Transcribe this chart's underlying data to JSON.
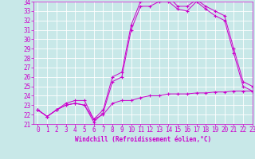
{
  "title": "",
  "xlabel": "Windchill (Refroidissement éolien,°C)",
  "background_color": "#c8e8e8",
  "line_color": "#cc00cc",
  "x_values": [
    0,
    1,
    2,
    3,
    4,
    5,
    6,
    7,
    8,
    9,
    10,
    11,
    12,
    13,
    14,
    15,
    16,
    17,
    18,
    19,
    20,
    21,
    22,
    23
  ],
  "line1": [
    22.5,
    21.8,
    22.5,
    23.0,
    23.2,
    23.0,
    21.2,
    22.2,
    25.5,
    26.0,
    31.0,
    33.5,
    33.5,
    34.0,
    34.0,
    33.2,
    33.0,
    34.0,
    33.2,
    32.5,
    32.0,
    28.5,
    25.0,
    24.5
  ],
  "line2": [
    22.5,
    21.8,
    22.5,
    23.2,
    23.5,
    23.5,
    21.5,
    22.5,
    26.0,
    26.5,
    31.5,
    34.0,
    34.5,
    34.5,
    34.5,
    33.5,
    33.5,
    34.2,
    33.5,
    33.0,
    32.5,
    29.0,
    25.5,
    25.0
  ],
  "line3": [
    22.5,
    21.8,
    22.5,
    23.0,
    23.2,
    23.0,
    21.5,
    22.0,
    23.2,
    23.5,
    23.5,
    23.8,
    24.0,
    24.0,
    24.2,
    24.2,
    24.2,
    24.3,
    24.3,
    24.4,
    24.4,
    24.5,
    24.5,
    24.5
  ],
  "ylim": [
    21,
    34
  ],
  "xlim": [
    -0.5,
    23
  ],
  "yticks": [
    21,
    22,
    23,
    24,
    25,
    26,
    27,
    28,
    29,
    30,
    31,
    32,
    33,
    34
  ],
  "xticks": [
    0,
    1,
    2,
    3,
    4,
    5,
    6,
    7,
    8,
    9,
    10,
    11,
    12,
    13,
    14,
    15,
    16,
    17,
    18,
    19,
    20,
    21,
    22,
    23
  ],
  "tick_fontsize": 5.5,
  "xlabel_fontsize": 5.5
}
